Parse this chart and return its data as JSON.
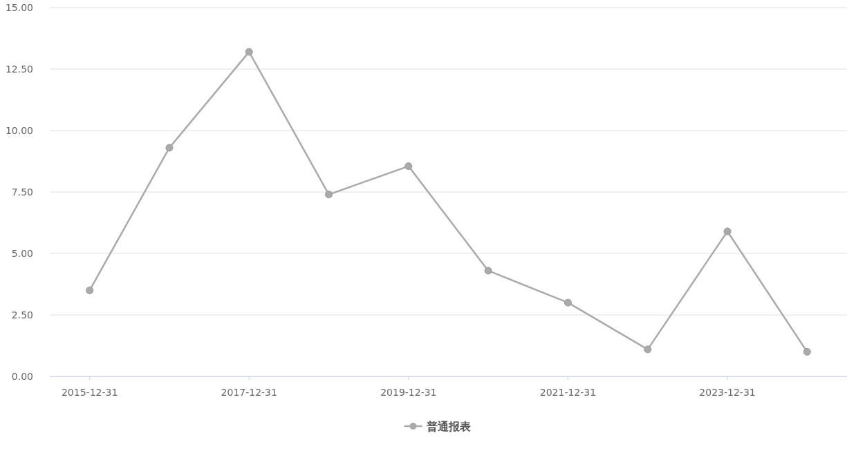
{
  "chart_data": {
    "type": "line",
    "categories": [
      "2015-12-31",
      null,
      "2017-12-31",
      null,
      "2019-12-31",
      null,
      "2021-12-31",
      null,
      "2023-12-31",
      null
    ],
    "series": [
      {
        "name": "普通报表",
        "color": "#aaaaaa",
        "values": [
          3.5,
          9.3,
          13.2,
          7.4,
          8.55,
          4.3,
          3.0,
          1.1,
          5.9,
          1.0
        ]
      }
    ],
    "ylim": [
      0,
      15
    ],
    "yticks": [
      {
        "value": 0,
        "label": "0.00"
      },
      {
        "value": 2.5,
        "label": "2.50"
      },
      {
        "value": 5,
        "label": "5.00"
      },
      {
        "value": 7.5,
        "label": "7.50"
      },
      {
        "value": 10,
        "label": "10.00"
      },
      {
        "value": 12.5,
        "label": "12.50"
      },
      {
        "value": 15,
        "label": "15.00"
      }
    ],
    "grid": "y",
    "legend": "bottom",
    "marker": "circle",
    "line_style": "solid"
  }
}
